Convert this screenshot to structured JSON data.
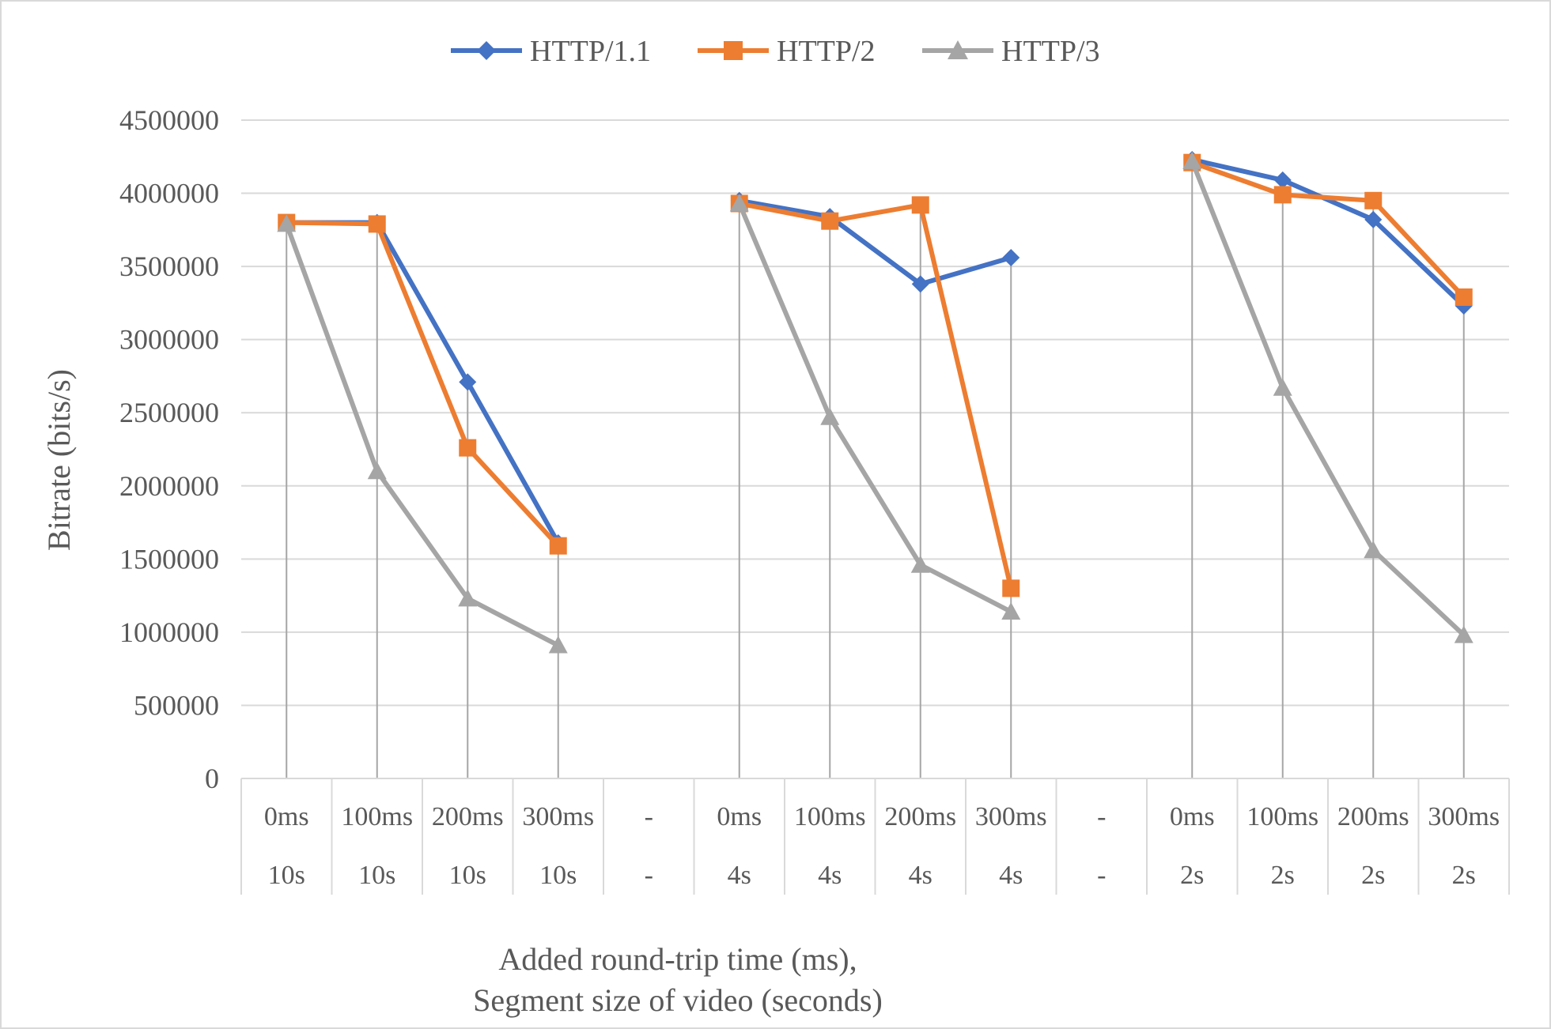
{
  "chart_data": {
    "type": "line",
    "title": "",
    "xlabel": "Added round-trip time (ms),\nSegment size of video (seconds)",
    "xlabel_lines": [
      "Added round-trip time (ms),",
      "Segment size of video (seconds)"
    ],
    "ylabel": "Bitrate (bits/s)",
    "ylim": [
      0,
      4500000
    ],
    "yticks": [
      0,
      500000,
      1000000,
      1500000,
      2000000,
      2500000,
      3000000,
      3500000,
      4000000,
      4500000
    ],
    "grid": true,
    "legend_position": "top",
    "categories": [
      [
        "0ms",
        "10s"
      ],
      [
        "100ms",
        "10s"
      ],
      [
        "200ms",
        "10s"
      ],
      [
        "300ms",
        "10s"
      ],
      [
        "-",
        "-"
      ],
      [
        "0ms",
        "4s"
      ],
      [
        "100ms",
        "4s"
      ],
      [
        "200ms",
        "4s"
      ],
      [
        "300ms",
        "4s"
      ],
      [
        "-",
        "-"
      ],
      [
        "0ms",
        "2s"
      ],
      [
        "100ms",
        "2s"
      ],
      [
        "200ms",
        "2s"
      ],
      [
        "300ms",
        "2s"
      ]
    ],
    "series": [
      {
        "name": "HTTP/1.1",
        "color": "#4472c4",
        "marker": "diamond",
        "values": [
          3800000,
          3800000,
          2710000,
          1610000,
          null,
          3950000,
          3840000,
          3380000,
          3560000,
          null,
          4230000,
          4090000,
          3820000,
          3230000
        ]
      },
      {
        "name": "HTTP/2",
        "color": "#ed7d31",
        "marker": "square",
        "values": [
          3800000,
          3790000,
          2260000,
          1590000,
          null,
          3930000,
          3810000,
          3920000,
          1300000,
          null,
          4210000,
          3990000,
          3950000,
          3290000
        ]
      },
      {
        "name": "HTTP/3",
        "color": "#a5a5a5",
        "marker": "triangle",
        "values": [
          3790000,
          2100000,
          1230000,
          910000,
          null,
          3930000,
          2470000,
          1460000,
          1140000,
          null,
          4220000,
          2670000,
          1560000,
          980000
        ]
      }
    ]
  }
}
